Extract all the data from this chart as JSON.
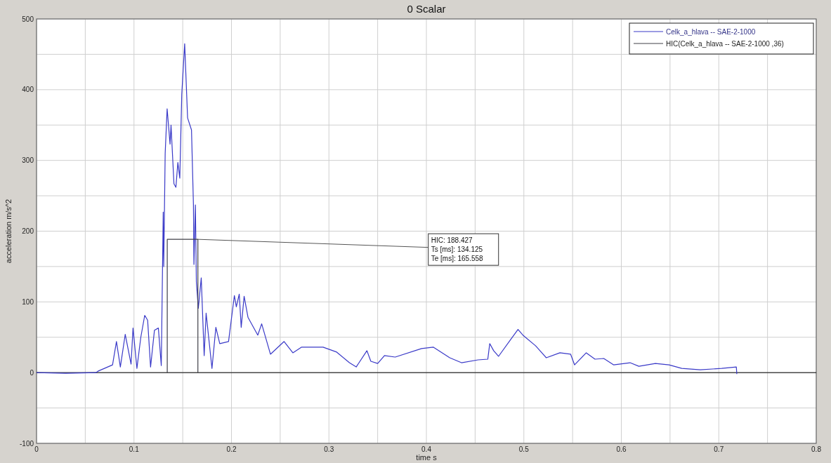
{
  "chart_data": {
    "type": "line",
    "title": "0 Scalar",
    "xlabel": "time s",
    "ylabel": "acceleration m/s^2",
    "xlim": [
      0,
      0.8
    ],
    "ylim": [
      -100,
      500
    ],
    "xticks": [
      0,
      {
        "value": 0.05,
        "label": null
      },
      0.1,
      {
        "value": 0.15,
        "label": null
      },
      0.2,
      {
        "value": 0.25,
        "label": null
      },
      0.3,
      {
        "value": 0.35,
        "label": null
      },
      0.4,
      {
        "value": 0.45,
        "label": null
      },
      0.5,
      {
        "value": 0.55,
        "label": null
      },
      0.6,
      {
        "value": 0.65,
        "label": null
      },
      0.7,
      {
        "value": 0.75,
        "label": null
      },
      0.8
    ],
    "yticks": [
      -100,
      {
        "value": -50,
        "label": null
      },
      0,
      {
        "value": 50,
        "label": null
      },
      100,
      {
        "value": 150,
        "label": null
      },
      200,
      {
        "value": 250,
        "label": null
      },
      300,
      {
        "value": 350,
        "label": null
      },
      400,
      {
        "value": 450,
        "label": null
      },
      500
    ],
    "grid": true,
    "legend": "top right",
    "marker": "none",
    "line_style": "solid",
    "series": [
      {
        "name": "Celk_a_hlava -- SAE-2-1000",
        "color": "#3a3ac8",
        "x": [
          0,
          0.03,
          0.061,
          0.063,
          0.078,
          0.082,
          0.086,
          0.091,
          0.097,
          0.099,
          0.103,
          0.107,
          0.111,
          0.114,
          0.117,
          0.121,
          0.125,
          0.128,
          0.13,
          0.1305,
          0.132,
          0.134,
          0.137,
          0.138,
          0.141,
          0.143,
          0.145,
          0.147,
          0.149,
          0.152,
          0.155,
          0.159,
          0.161,
          0.1615,
          0.163,
          0.164,
          0.166,
          0.169,
          0.172,
          0.174,
          0.18,
          0.184,
          0.188,
          0.197,
          0.203,
          0.205,
          0.208,
          0.21,
          0.213,
          0.217,
          0.227,
          0.231,
          0.24,
          0.254,
          0.263,
          0.272,
          0.294,
          0.308,
          0.321,
          0.328,
          0.339,
          0.343,
          0.35,
          0.357,
          0.368,
          0.395,
          0.407,
          0.424,
          0.436,
          0.453,
          0.463,
          0.465,
          0.469,
          0.474,
          0.486,
          0.494,
          0.499,
          0.512,
          0.523,
          0.537,
          0.548,
          0.552,
          0.564,
          0.573,
          0.582,
          0.592,
          0.609,
          0.618,
          0.635,
          0.649,
          0.662,
          0.681,
          0.703,
          0.718,
          0.7185
        ],
        "values": [
          0,
          -1,
          0,
          2,
          11,
          44,
          8,
          54,
          12,
          63,
          6,
          50,
          81,
          74,
          8,
          60,
          63,
          10,
          227,
          150,
          310,
          373,
          323,
          350,
          267,
          262,
          297,
          275,
          393,
          465,
          360,
          343,
          237,
          153,
          237,
          128,
          91,
          134,
          24,
          84,
          6,
          64,
          41,
          44,
          109,
          93,
          111,
          64,
          108,
          78,
          53,
          69,
          26,
          44,
          28,
          36,
          36,
          29,
          14,
          8,
          31,
          16,
          13,
          24,
          22,
          34,
          36,
          21,
          14,
          18,
          19,
          41,
          31,
          23,
          46,
          61,
          53,
          38,
          21,
          28,
          26,
          11,
          28,
          19,
          20,
          11,
          14,
          9,
          13,
          11,
          6,
          4,
          6,
          8,
          -2
        ]
      },
      {
        "name": "HIC(Celk_a_hlava -- SAE-2-1000 ,36)",
        "color": "#404048",
        "x": [
          0.134125,
          0.134125,
          0.165558,
          0.165558
        ],
        "values": [
          0,
          188.427,
          188.427,
          0
        ]
      }
    ],
    "ref_lines": [
      {
        "axis": "y",
        "value": 0,
        "color": "#000000"
      }
    ],
    "annotations": [
      {
        "text": "HIC: 188.427\nTs [ms]: 134.125\nTe [ms]: 165.558",
        "x": 0.165558,
        "y": 188.427
      }
    ]
  }
}
